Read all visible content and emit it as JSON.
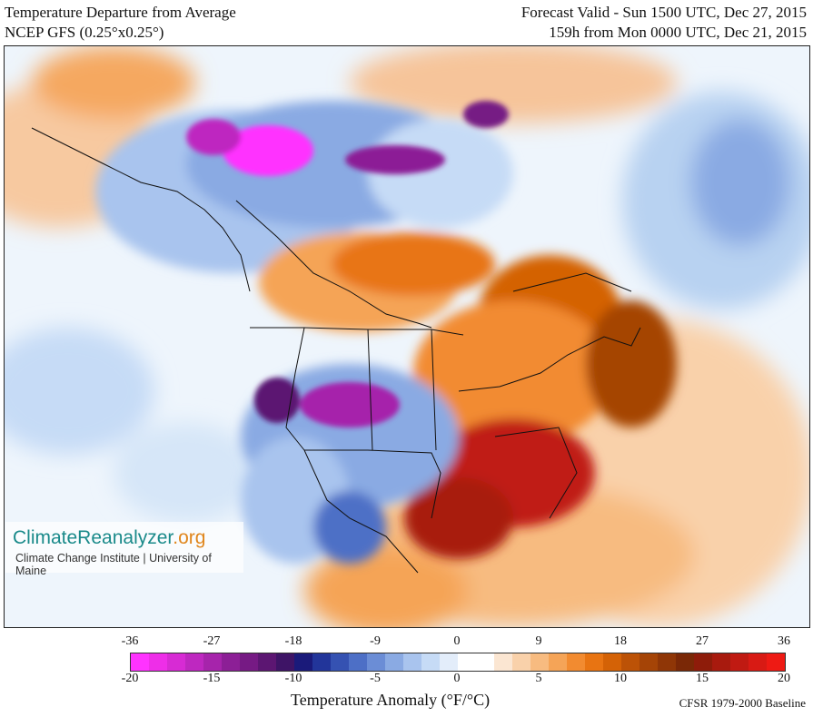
{
  "header": {
    "title": "Temperature Departure from Average",
    "model": "NCEP GFS (0.25°x0.25°)",
    "valid": "Forecast Valid - Sun 1500 UTC, Dec 27, 2015",
    "lead": "159h from Mon 0000 UTC, Dec 21, 2015"
  },
  "logo": {
    "brand_prefix": "ClimateReanalyzer",
    "brand_suffix": ".org",
    "subtitle": "Climate Change Institute | University of Maine"
  },
  "colorbar": {
    "fahrenheit_ticks": [
      "-36",
      "-27",
      "-18",
      "-9",
      "0",
      "9",
      "18",
      "27",
      "36"
    ],
    "celsius_ticks": [
      "-20",
      "-15",
      "-10",
      "-5",
      "0",
      "5",
      "10",
      "15",
      "20"
    ],
    "colors": [
      "#ff33ff",
      "#ee2ee8",
      "#d72bd4",
      "#be28c0",
      "#a624ab",
      "#8c1f96",
      "#761a84",
      "#5c1672",
      "#3e1466",
      "#1a1a7a",
      "#22359a",
      "#3552b2",
      "#4d6fc6",
      "#6b8dd6",
      "#8aaae3",
      "#a9c4ee",
      "#c6dbf6",
      "#e3edfa",
      "#ffffff",
      "#ffffff",
      "#fbe6d2",
      "#f9d1aa",
      "#f7bb80",
      "#f5a457",
      "#f28b30",
      "#e87412",
      "#d46206",
      "#bc5206",
      "#a54406",
      "#8f3606",
      "#7a2806",
      "#8e1c0a",
      "#a81a0e",
      "#c01a12",
      "#d81a14",
      "#ee1a14"
    ],
    "title": "Temperature Anomaly (°F/°C)",
    "baseline": "CFSR 1979-2000 Baseline"
  }
}
